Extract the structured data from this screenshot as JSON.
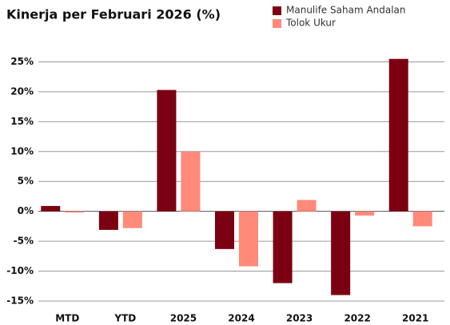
{
  "chart_data": {
    "type": "bar",
    "title": "Kinerja per Februari 2026 (%)",
    "categories": [
      "MTD",
      "YTD",
      "2025",
      "2024",
      "2023",
      "2022",
      "2021"
    ],
    "series": [
      {
        "name": "Manulife Saham Andalan",
        "color": "#7b0011",
        "values": [
          0.9,
          -3.1,
          20.3,
          -6.3,
          -12.0,
          -14.0,
          25.5
        ]
      },
      {
        "name": "Tolok Ukur",
        "color": "#ff8a7a",
        "values": [
          -0.2,
          -2.8,
          10.0,
          -9.2,
          1.9,
          -0.7,
          -2.5
        ]
      }
    ],
    "ylim": [
      -15,
      26
    ],
    "yticks": [
      {
        "value": -15,
        "label": "-15%"
      },
      {
        "value": -10,
        "label": "-10%"
      },
      {
        "value": -5,
        "label": "-5%"
      },
      {
        "value": 0,
        "label": "0%"
      },
      {
        "value": 5,
        "label": "5%"
      },
      {
        "value": 10,
        "label": "10%"
      },
      {
        "value": 15,
        "label": "15%"
      },
      {
        "value": 20,
        "label": "20%"
      },
      {
        "value": 25,
        "label": "25%"
      }
    ],
    "grid": true,
    "legend": "top-right"
  }
}
